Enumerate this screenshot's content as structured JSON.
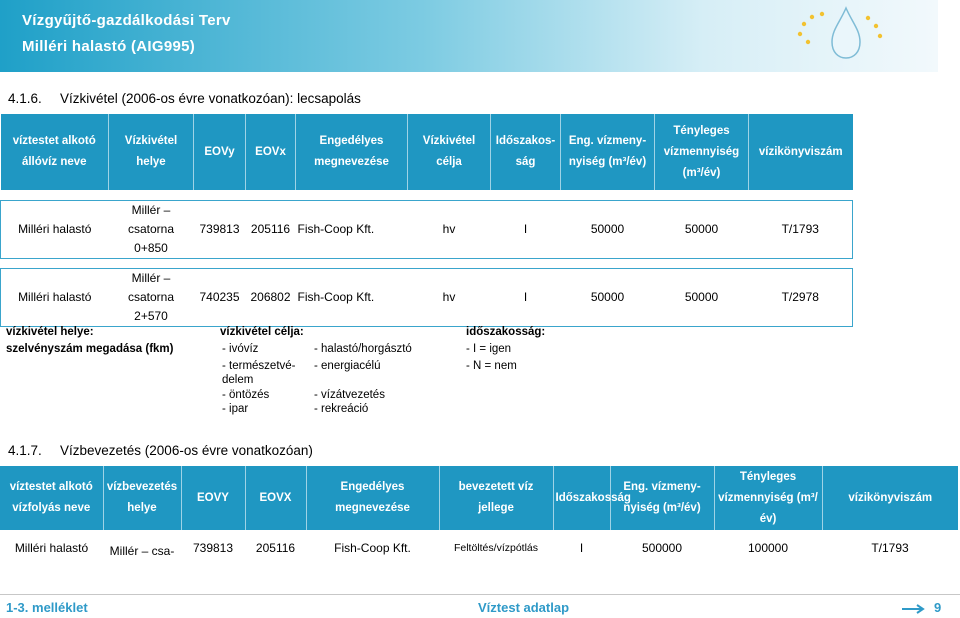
{
  "header": {
    "title": "Vízgyűjtő-gazdálkodási Terv",
    "subtitle": "Milléri halastó (AIG995)"
  },
  "section1": {
    "number": "4.1.6.",
    "title": "Vízkivétel (2006-os évre vonatkozóan): lecsapolás",
    "columns": [
      "víztestet alkotó állóvíz neve",
      "Vízkivétel helye",
      "EOVy",
      "EOVx",
      "Engedélyes megnevezése",
      "Vízkivétel célja",
      "Időszakos-ság",
      "Eng. vízmeny-nyiség (m³/év)",
      "Tényleges vízmennyiség (m³/év)",
      "vízikönyviszám"
    ],
    "rows": [
      [
        "Milléri halastó",
        "Millér – csatorna 0+850",
        "739813",
        "205116",
        "Fish-Coop Kft.",
        "hv",
        "I",
        "50000",
        "50000",
        "T/1793"
      ],
      [
        "Milléri halastó",
        "Millér – csatorna 2+570",
        "740235",
        "206802",
        "Fish-Coop Kft.",
        "hv",
        "I",
        "50000",
        "50000",
        "T/2978"
      ]
    ]
  },
  "legend": {
    "place_title": "vízkivétel helye:",
    "place_desc": "szelvényszám megadása (fkm)",
    "purpose_title": "vízkivétel célja:",
    "purpose_col1": [
      "- ivóvíz",
      "- természetvé-",
      "delem",
      "- öntözés",
      "- ipar"
    ],
    "purpose_col2": [
      "- halastó/horgásztó",
      "- energiacélú",
      "",
      "- vízátvezetés",
      "- rekreáció"
    ],
    "period_title": "időszakosság:",
    "period_items": [
      "- I = igen",
      "- N = nem"
    ]
  },
  "section2": {
    "number": "4.1.7.",
    "title": "Vízbevezetés (2006-os évre vonatkozóan)",
    "columns": [
      "víztestet alkotó vízfolyás neve",
      "vízbevezetés helye",
      "EOVY",
      "EOVX",
      "Engedélyes megnevezése",
      "bevezetett víz jellege",
      "Időszakosság",
      "Eng. vízmeny-nyiség (m³/év)",
      "Tényleges vízmennyiség (m³/év)",
      "vízikönyviszám"
    ],
    "rows": [
      [
        "Milléri halastó",
        "Millér – csa-",
        "739813",
        "205116",
        "Fish-Coop Kft.",
        "Feltöltés/vízpótlás",
        "I",
        "500000",
        "100000",
        "T/1793"
      ]
    ]
  },
  "footer": {
    "left": "1-3. melléklet",
    "center": "Víztest adatlap",
    "page": "9"
  },
  "colors": {
    "header_blue": "#1fa0c8",
    "table_header": "#1f97c2",
    "footer_text": "#2f9ac8"
  }
}
